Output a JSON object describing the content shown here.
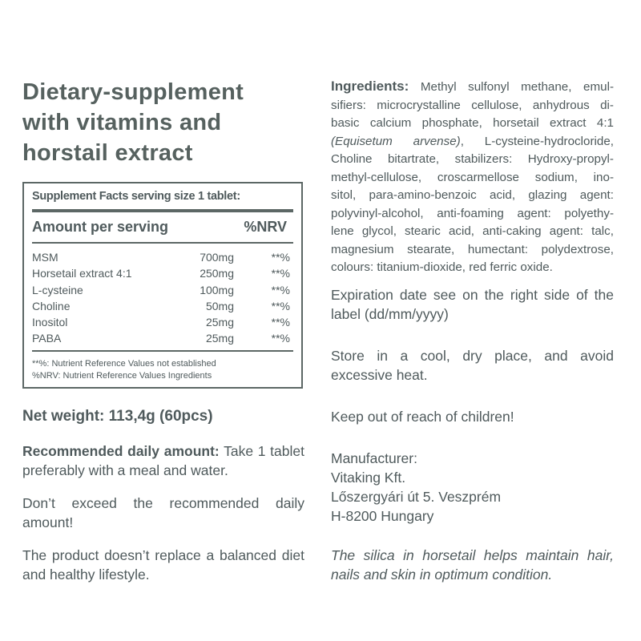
{
  "title": [
    "Dietary-supplement",
    "with vitamins and",
    "horstail extract"
  ],
  "facts": {
    "header": "Supplement Facts serving size 1 tablet:",
    "amount_label": "Amount per serving",
    "nrv_label": "%NRV",
    "rows": [
      {
        "name": "MSM",
        "amount": "700mg",
        "nrv": "**%"
      },
      {
        "name": "Horsetail extract 4:1",
        "amount": "250mg",
        "nrv": "**%"
      },
      {
        "name": "L-cysteine",
        "amount": "100mg",
        "nrv": "**%"
      },
      {
        "name": "Choline",
        "amount": "50mg",
        "nrv": "**%"
      },
      {
        "name": "Inositol",
        "amount": "25mg",
        "nrv": "**%"
      },
      {
        "name": "PABA",
        "amount": "25mg",
        "nrv": "**%"
      }
    ],
    "notes": [
      "**%: Nutrient Reference Values not established",
      "%NRV: Nutrient Reference Values Ingredients"
    ]
  },
  "net_weight": "Net weight: 113,4g (60pcs)",
  "recommended": {
    "label": "Recommended daily amount:",
    "text": " Take 1 tablet preferably with a meal and water."
  },
  "warning": "Don’t exceed the recommended daily amount!",
  "disclaimer": "The product doesn’t replace a balanced diet and healthy lifestyle.",
  "ingredients": {
    "label": "Ingredients:",
    "lines": [
      " Methyl sulfonyl methane, emul-",
      "sifiers: microcrystalline cellulose, anhydrous di-",
      "basic calcium phosphate, horsetail extract 4:1",
      "(Equisetum arvense)",
      ", L-cysteine-hydrocloride,",
      "Choline bitartrate, stabilizers: Hydroxy-propyl-",
      "methyl-cellulose, croscarmellose sodium, ino-",
      "sitol, para-amino-benzoic acid, glazing agent:",
      "polyvinyl-alcohol, anti-foaming agent: polyethy-",
      "lene glycol, stearic acid, anti-caking agent: talc,",
      "magnesium stearate, humectant: polydextrose,",
      "colours: titanium-dioxide, red ferric oxide."
    ]
  },
  "expiration": "Expiration date see on the right side of the label (dd/mm/yyyy)",
  "storage": "Store in a cool, dry place, and avoid excessive heat.",
  "children": "Keep out of reach of children!",
  "manufacturer": [
    "Manufacturer:",
    "Vitaking Kft.",
    "Lőszergyári út 5. Veszprém",
    "H-8200 Hungary"
  ],
  "claim": "The silica in horsetail helps maintain hair, nails and skin in optimum condition."
}
